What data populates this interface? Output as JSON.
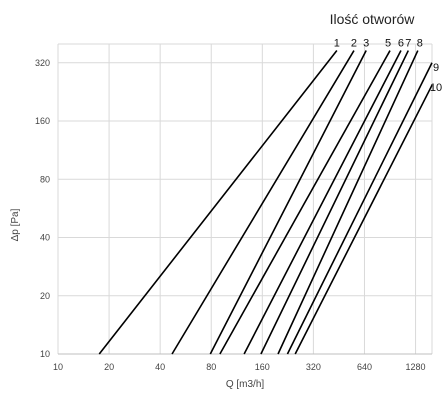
{
  "chart_data": {
    "type": "line",
    "title": "Ilość otworów",
    "xlabel": "Q [m3/h]",
    "ylabel": "Δp [Pa]",
    "x_scale": "log",
    "y_scale": "log",
    "xlim": [
      10,
      1600
    ],
    "ylim": [
      10,
      400
    ],
    "x_ticks": [
      "10",
      "20",
      "40",
      "80",
      "160",
      "320",
      "640",
      "1280"
    ],
    "y_ticks": [
      "10",
      "20",
      "40",
      "80",
      "160",
      "320"
    ],
    "grid": true,
    "series": [
      {
        "name": "1",
        "x": [
          17.5,
          440
        ]
      },
      {
        "name": "2",
        "x": [
          47,
          555
        ]
      },
      {
        "name": "3",
        "x": [
          79,
          655
        ]
      },
      {
        "name": "5",
        "x": [
          90,
          905
        ]
      },
      {
        "name": "6",
        "x": [
          125,
          1050
        ]
      },
      {
        "name": "7",
        "x": [
          157,
          1160
        ]
      },
      {
        "name": "8",
        "x": [
          198,
          1320
        ]
      },
      {
        "name": "9",
        "x": [
          225,
          1600
        ]
      },
      {
        "name": "10",
        "x": [
          250,
          1600
        ]
      }
    ],
    "series_y": [
      10,
      370
    ],
    "series_y_end_override": {
      "9": 320,
      "10": 245
    }
  }
}
